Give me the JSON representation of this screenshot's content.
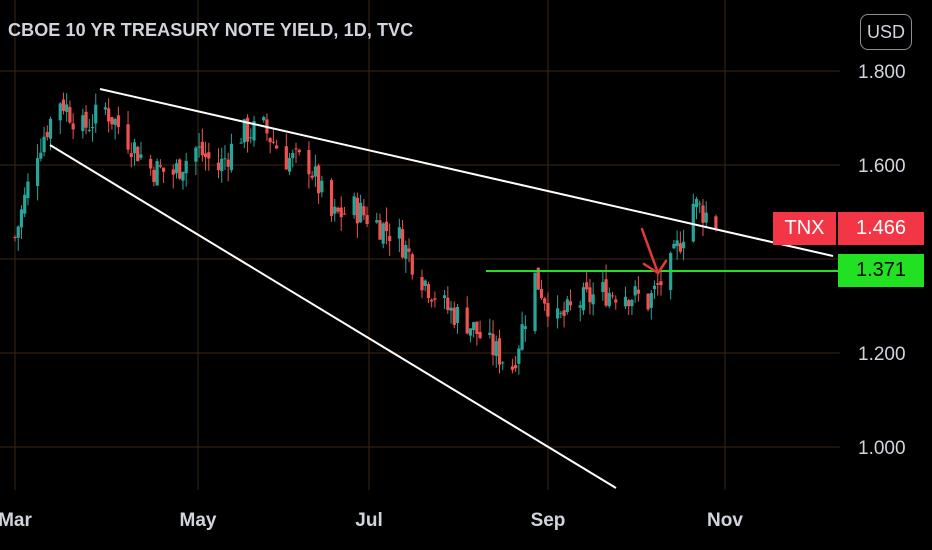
{
  "title": "CBOE 10 YR TREASURY NOTE YIELD, 1D, TVC",
  "currency_label": "USD",
  "ticker_label": "TNX",
  "last_price_label": "1.466",
  "support_label": "1.371",
  "colors": {
    "background": "#000000",
    "grid": "#3b2612",
    "up": "#26a69a",
    "down": "#ef5350",
    "trendline": "#ffffff",
    "support": "#22e022",
    "arrow": "#e53935",
    "text": "#d1d4dc"
  },
  "chart_data": {
    "type": "candlestick",
    "x_axis": {
      "ticks": [
        "Mar",
        "May",
        "Jul",
        "Sep",
        "Nov"
      ],
      "range": [
        "2021-03-01",
        "2021-11-30"
      ]
    },
    "y_axis": {
      "ticks": [
        "1.800",
        "1.600",
        "1.200",
        "1.000"
      ],
      "range": [
        0.93,
        1.92
      ],
      "gridlines": [
        1.8,
        1.6,
        1.4,
        1.2,
        1.0
      ]
    },
    "grid": true,
    "series_close": {
      "x": [
        "2021-03-01",
        "2021-03-08",
        "2021-03-15",
        "2021-03-22",
        "2021-03-29",
        "2021-04-05",
        "2021-04-12",
        "2021-04-19",
        "2021-04-26",
        "2021-05-03",
        "2021-05-10",
        "2021-05-17",
        "2021-05-24",
        "2021-05-31",
        "2021-06-07",
        "2021-06-14",
        "2021-06-21",
        "2021-06-28",
        "2021-07-05",
        "2021-07-12",
        "2021-07-19",
        "2021-07-26",
        "2021-08-02",
        "2021-08-09",
        "2021-08-16",
        "2021-08-23",
        "2021-08-30",
        "2021-09-06",
        "2021-09-13",
        "2021-09-20",
        "2021-09-27",
        "2021-10-04"
      ],
      "y": [
        1.44,
        1.62,
        1.72,
        1.66,
        1.7,
        1.64,
        1.58,
        1.57,
        1.62,
        1.58,
        1.65,
        1.66,
        1.6,
        1.59,
        1.48,
        1.5,
        1.47,
        1.44,
        1.36,
        1.3,
        1.27,
        1.22,
        1.18,
        1.36,
        1.27,
        1.31,
        1.33,
        1.33,
        1.31,
        1.38,
        1.51,
        1.47
      ]
    },
    "annotations": {
      "upper_trendline": [
        {
          "x": "2021-03-22",
          "y": 1.765
        },
        {
          "x": "2021-11-20",
          "y": 1.405
        }
      ],
      "lower_trendline": [
        {
          "x": "2021-03-11",
          "y": 1.645
        },
        {
          "x": "2021-10-25",
          "y": 0.875
        }
      ],
      "support_line": {
        "y": 1.371,
        "from": "2021-08-02",
        "to": "2021-11-30"
      },
      "arrow": {
        "from": {
          "x": "2021-10-01",
          "y": 1.48
        },
        "to": {
          "x": "2021-10-08",
          "y": 1.375
        }
      }
    }
  }
}
